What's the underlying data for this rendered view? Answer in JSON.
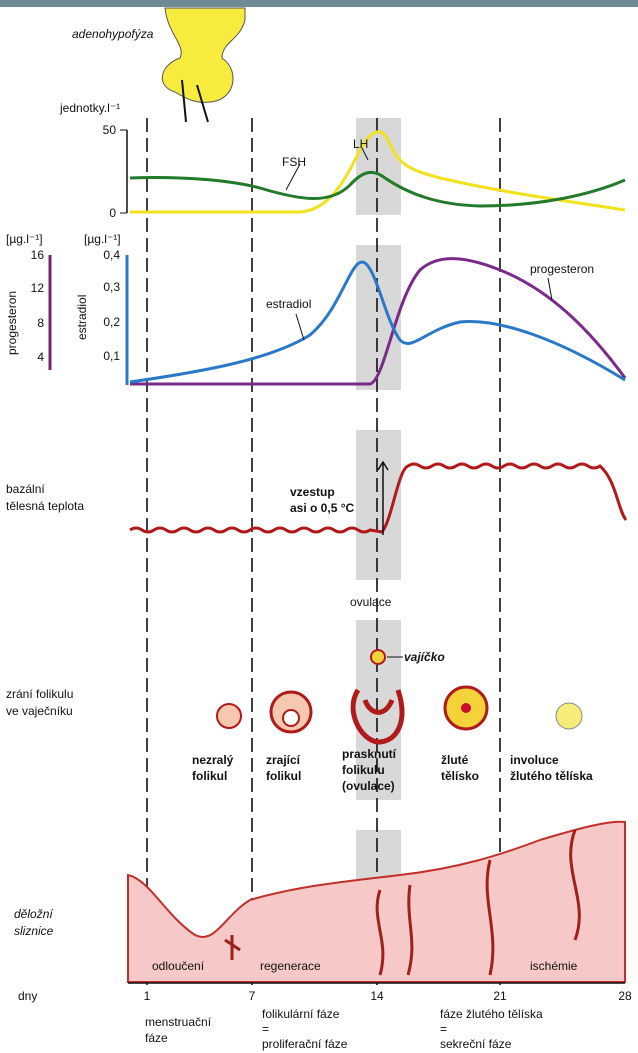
{
  "header": {
    "gland": "adenohypofýza"
  },
  "gonadotropins": {
    "unit": "jednotky.l⁻¹",
    "ticks": [
      "50",
      "0"
    ],
    "fsh": "FSH",
    "lh": "LH"
  },
  "steroids": {
    "progesteron_unit": "[µg.l⁻¹]",
    "estradiol_unit": "[µg.l⁻¹]",
    "progesteron_axis": "progesteron",
    "progesteron_ticks": [
      "16",
      "12",
      "8",
      "4"
    ],
    "estradiol_axis": "estradiol",
    "estradiol_ticks": [
      "0,4",
      "0,3",
      "0,2",
      "0,1"
    ],
    "estradiol_label": "estradiol",
    "progesteron_label": "progesteron"
  },
  "temperature": {
    "label": [
      "bazální",
      "tělesná teplota"
    ],
    "annotation": [
      "vzestup",
      "asi o 0,5 °C"
    ],
    "ovulation": "ovulace"
  },
  "follicles": {
    "label": [
      "zrání folikulu",
      "ve vaječníku"
    ],
    "egg": "vajíčko",
    "stages": [
      [
        "nezralý",
        "folikul"
      ],
      [
        "zrající",
        "folikul"
      ],
      [
        "prasknutí",
        "folikulu",
        "(ovulace)"
      ],
      [
        "žluté",
        "tělísko"
      ],
      [
        "involuce",
        "žlutého tělíska"
      ]
    ]
  },
  "endometrium": {
    "label": [
      "děložní",
      "sliznice"
    ],
    "phases": [
      "odloučení",
      "regenerace",
      "ischémie"
    ]
  },
  "days": {
    "label": "dny",
    "ticks": [
      "1",
      "7",
      "14",
      "21",
      "28"
    ]
  },
  "phases": [
    [
      "menstruační",
      "fáze"
    ],
    [
      "folikulární fáze",
      "=",
      "proliferační fáze"
    ],
    [
      "fáze žlutého tělíska",
      "=",
      "sekreční fáze"
    ]
  ]
}
